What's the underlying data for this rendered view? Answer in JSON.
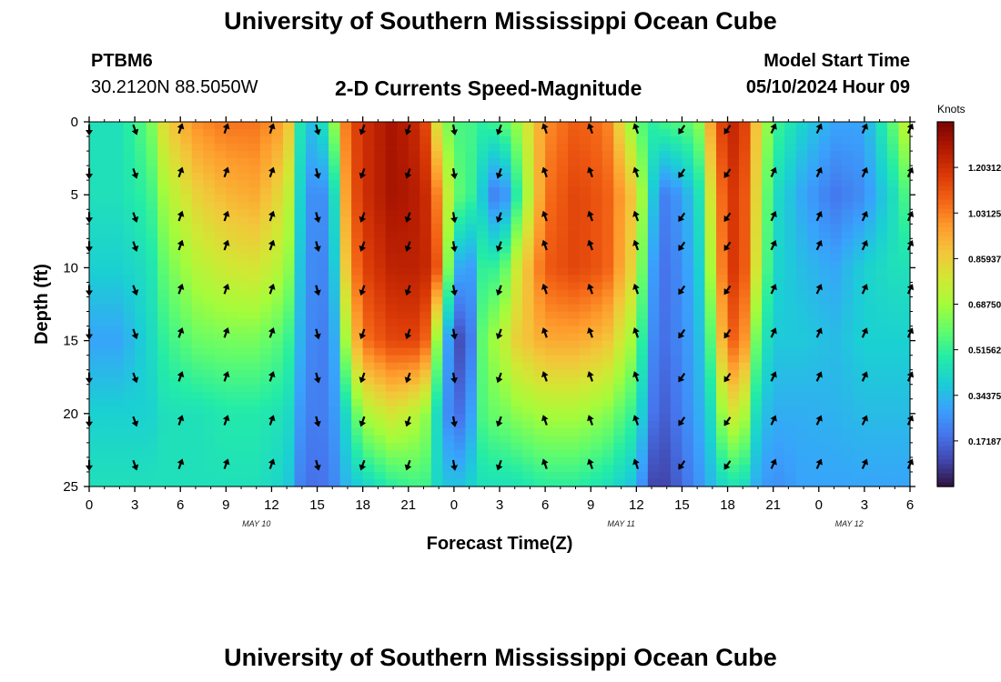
{
  "header": {
    "title": "University of Southern Mississippi Ocean Cube",
    "station": "PTBM6",
    "coords": "30.2120N  88.5050W",
    "subtitle": "2-D Currents Speed-Magnitude",
    "model_start_label": "Model Start Time",
    "model_start_value": "05/10/2024 Hour 09"
  },
  "footer": {
    "title": "University of Southern Mississippi Ocean Cube"
  },
  "chart_data": {
    "type": "heatmap",
    "title": "2-D Currents Speed-Magnitude",
    "xlabel": "Forecast Time(Z)",
    "ylabel": "Depth (ft)",
    "x_range_hours": [
      0,
      54
    ],
    "y_range_ft": [
      0,
      25
    ],
    "x_tick_labels": [
      "0",
      "3",
      "6",
      "9",
      "12",
      "15",
      "18",
      "21",
      "0",
      "3",
      "6",
      "9",
      "12",
      "15",
      "18",
      "21",
      "0",
      "3",
      "6"
    ],
    "y_tick_labels": [
      "0",
      "5",
      "10",
      "15",
      "20",
      "25"
    ],
    "date_labels": [
      {
        "label": "MAY 10",
        "hour": 11
      },
      {
        "label": "MAY 11",
        "hour": 35
      },
      {
        "label": "MAY 12",
        "hour": 50
      }
    ],
    "colorbar": {
      "unit": "Knots",
      "ticks": [
        "1.20312",
        "1.03125",
        "0.85937",
        "0.68750",
        "0.51562",
        "0.34375",
        "0.17187"
      ],
      "tick_values": [
        1.20312,
        1.03125,
        0.85937,
        0.6875,
        0.51562,
        0.34375,
        0.17187
      ],
      "min": 0.0,
      "max": 1.375,
      "colormap": [
        "#30123b",
        "#4145ab",
        "#4675ed",
        "#39a2fc",
        "#1bcfd4",
        "#24eca6",
        "#61fc6c",
        "#a4fc3b",
        "#d1e834",
        "#f3c63a",
        "#fe9b2d",
        "#f36315",
        "#d93806",
        "#b11901",
        "#7a0402"
      ]
    },
    "speed_profiles": [
      {
        "hour": 0,
        "depths": [
          0,
          5,
          10,
          15,
          20,
          25
        ],
        "speed": [
          0.45,
          0.45,
          0.4,
          0.3,
          0.4,
          0.45
        ]
      },
      {
        "hour": 2,
        "depths": [
          0,
          5,
          10,
          15,
          20,
          25
        ],
        "speed": [
          0.45,
          0.45,
          0.4,
          0.3,
          0.4,
          0.45
        ]
      },
      {
        "hour": 4,
        "depths": [
          0,
          5,
          10,
          15,
          20,
          25
        ],
        "speed": [
          0.6,
          0.52,
          0.45,
          0.42,
          0.4,
          0.45
        ]
      },
      {
        "hour": 5,
        "depths": [
          0,
          5,
          10,
          15,
          20,
          25
        ],
        "speed": [
          0.85,
          0.7,
          0.6,
          0.52,
          0.45,
          0.45
        ]
      },
      {
        "hour": 7,
        "depths": [
          0,
          5,
          10,
          15,
          20,
          25
        ],
        "speed": [
          1.0,
          0.85,
          0.72,
          0.6,
          0.45,
          0.45
        ]
      },
      {
        "hour": 9,
        "depths": [
          0,
          5,
          10,
          15,
          20,
          25
        ],
        "speed": [
          1.05,
          0.92,
          0.78,
          0.62,
          0.48,
          0.45
        ]
      },
      {
        "hour": 11,
        "depths": [
          0,
          5,
          10,
          15,
          20,
          25
        ],
        "speed": [
          1.05,
          0.95,
          0.8,
          0.62,
          0.48,
          0.45
        ]
      },
      {
        "hour": 13,
        "depths": [
          0,
          5,
          10,
          15,
          20,
          25
        ],
        "speed": [
          0.95,
          0.8,
          0.7,
          0.55,
          0.45,
          0.4
        ]
      },
      {
        "hour": 14,
        "depths": [
          0,
          5,
          10,
          15,
          20,
          25
        ],
        "speed": [
          0.4,
          0.35,
          0.32,
          0.3,
          0.25,
          0.2
        ]
      },
      {
        "hour": 15,
        "depths": [
          0,
          5,
          10,
          15,
          20,
          25
        ],
        "speed": [
          0.35,
          0.2,
          0.2,
          0.2,
          0.2,
          0.18
        ]
      },
      {
        "hour": 16,
        "depths": [
          0,
          5,
          10,
          15,
          20,
          25
        ],
        "speed": [
          0.6,
          0.35,
          0.3,
          0.25,
          0.25,
          0.22
        ]
      },
      {
        "hour": 17,
        "depths": [
          0,
          5,
          10,
          15,
          20,
          25
        ],
        "speed": [
          1.1,
          1.05,
          0.95,
          0.75,
          0.45,
          0.35
        ]
      },
      {
        "hour": 18,
        "depths": [
          0,
          5,
          10,
          15,
          20,
          25
        ],
        "speed": [
          1.2,
          1.2,
          1.15,
          1.05,
          0.7,
          0.4
        ]
      },
      {
        "hour": 20,
        "depths": [
          0,
          5,
          10,
          15,
          20,
          25
        ],
        "speed": [
          1.3,
          1.3,
          1.25,
          1.15,
          0.8,
          0.5
        ]
      },
      {
        "hour": 22,
        "depths": [
          0,
          5,
          10,
          15,
          20,
          25
        ],
        "speed": [
          1.2,
          1.25,
          1.25,
          1.15,
          0.7,
          0.55
        ]
      },
      {
        "hour": 23,
        "depths": [
          0,
          5,
          10,
          15,
          20,
          25
        ],
        "speed": [
          0.75,
          1.0,
          1.1,
          0.6,
          0.4,
          0.4
        ]
      },
      {
        "hour": 24,
        "depths": [
          0,
          5,
          10,
          15,
          20,
          25
        ],
        "speed": [
          0.55,
          0.6,
          0.35,
          0.1,
          0.15,
          0.35
        ]
      },
      {
        "hour": 25,
        "depths": [
          0,
          5,
          10,
          15,
          20,
          25
        ],
        "speed": [
          0.55,
          0.55,
          0.25,
          0.15,
          0.25,
          0.4
        ]
      },
      {
        "hour": 26,
        "depths": [
          0,
          5,
          10,
          15,
          20,
          25
        ],
        "speed": [
          0.5,
          0.35,
          0.55,
          0.65,
          0.6,
          0.45
        ]
      },
      {
        "hour": 27,
        "depths": [
          0,
          5,
          10,
          15,
          20,
          25
        ],
        "speed": [
          0.55,
          0.15,
          0.5,
          0.7,
          0.6,
          0.45
        ]
      },
      {
        "hour": 28,
        "depths": [
          0,
          5,
          10,
          15,
          20,
          25
        ],
        "speed": [
          0.65,
          0.45,
          0.75,
          0.85,
          0.65,
          0.45
        ]
      },
      {
        "hour": 30,
        "depths": [
          0,
          5,
          10,
          15,
          20,
          25
        ],
        "speed": [
          1.0,
          1.05,
          1.1,
          0.95,
          0.7,
          0.5
        ]
      },
      {
        "hour": 32,
        "depths": [
          0,
          5,
          10,
          15,
          20,
          25
        ],
        "speed": [
          1.1,
          1.15,
          1.15,
          0.95,
          0.7,
          0.5
        ]
      },
      {
        "hour": 34,
        "depths": [
          0,
          5,
          10,
          15,
          20,
          25
        ],
        "speed": [
          1.05,
          1.1,
          1.1,
          0.9,
          0.65,
          0.45
        ]
      },
      {
        "hour": 36,
        "depths": [
          0,
          5,
          10,
          15,
          20,
          25
        ],
        "speed": [
          0.6,
          0.85,
          0.8,
          0.65,
          0.5,
          0.35
        ]
      },
      {
        "hour": 37,
        "depths": [
          0,
          5,
          10,
          15,
          20,
          25
        ],
        "speed": [
          0.5,
          0.4,
          0.3,
          0.25,
          0.2,
          0.1
        ]
      },
      {
        "hour": 38,
        "depths": [
          0,
          5,
          10,
          15,
          20,
          25
        ],
        "speed": [
          0.55,
          0.2,
          0.18,
          0.18,
          0.15,
          0.1
        ]
      },
      {
        "hour": 40,
        "depths": [
          0,
          5,
          10,
          15,
          20,
          25
        ],
        "speed": [
          0.6,
          0.4,
          0.35,
          0.32,
          0.3,
          0.25
        ]
      },
      {
        "hour": 41,
        "depths": [
          0,
          5,
          10,
          15,
          20,
          25
        ],
        "speed": [
          1.0,
          0.85,
          0.75,
          0.6,
          0.45,
          0.35
        ]
      },
      {
        "hour": 42,
        "depths": [
          0,
          5,
          10,
          15,
          20,
          25
        ],
        "speed": [
          1.25,
          1.2,
          1.2,
          1.1,
          0.8,
          0.45
        ]
      },
      {
        "hour": 43,
        "depths": [
          0,
          5,
          10,
          15,
          20,
          25
        ],
        "speed": [
          1.2,
          1.15,
          1.15,
          1.05,
          0.75,
          0.45
        ]
      },
      {
        "hour": 44,
        "depths": [
          0,
          5,
          10,
          15,
          20,
          25
        ],
        "speed": [
          0.85,
          0.8,
          0.75,
          0.55,
          0.4,
          0.3
        ]
      },
      {
        "hour": 45,
        "depths": [
          0,
          5,
          10,
          15,
          20,
          25
        ],
        "speed": [
          0.55,
          0.45,
          0.42,
          0.38,
          0.32,
          0.25
        ]
      },
      {
        "hour": 47,
        "depths": [
          0,
          5,
          10,
          15,
          20,
          25
        ],
        "speed": [
          0.4,
          0.3,
          0.35,
          0.38,
          0.32,
          0.3
        ]
      },
      {
        "hour": 49,
        "depths": [
          0,
          5,
          10,
          15,
          20,
          25
        ],
        "speed": [
          0.3,
          0.2,
          0.3,
          0.35,
          0.33,
          0.3
        ]
      },
      {
        "hour": 51,
        "depths": [
          0,
          5,
          10,
          15,
          20,
          25
        ],
        "speed": [
          0.3,
          0.25,
          0.4,
          0.4,
          0.35,
          0.3
        ]
      },
      {
        "hour": 53,
        "depths": [
          0,
          5,
          10,
          15,
          20,
          25
        ],
        "speed": [
          0.6,
          0.45,
          0.45,
          0.4,
          0.35,
          0.3
        ]
      },
      {
        "hour": 54,
        "depths": [
          0,
          5,
          10,
          15,
          20,
          25
        ],
        "speed": [
          0.8,
          0.6,
          0.45,
          0.4,
          0.35,
          0.3
        ]
      }
    ],
    "vector_depths_ft": [
      0.5,
      3.5,
      6.5,
      8.5,
      11.5,
      14.5,
      17.5,
      20.5,
      23.5
    ],
    "vector_direction_by_period": [
      {
        "hour_from": 0,
        "hour_to": 1,
        "direction_deg": 180
      },
      {
        "hour_from": 1,
        "hour_to": 5,
        "direction_deg": 160
      },
      {
        "hour_from": 5,
        "hour_to": 13,
        "direction_deg": 20
      },
      {
        "hour_from": 13,
        "hour_to": 16,
        "direction_deg": 165
      },
      {
        "hour_from": 16,
        "hour_to": 23,
        "direction_deg": 200
      },
      {
        "hour_from": 23,
        "hour_to": 25,
        "direction_deg": 170
      },
      {
        "hour_from": 25,
        "hour_to": 28,
        "direction_deg": 200
      },
      {
        "hour_from": 28,
        "hour_to": 38,
        "direction_deg": 340
      },
      {
        "hour_from": 38,
        "hour_to": 45,
        "direction_deg": 215
      },
      {
        "hour_from": 45,
        "hour_to": 55,
        "direction_deg": 25
      }
    ]
  }
}
